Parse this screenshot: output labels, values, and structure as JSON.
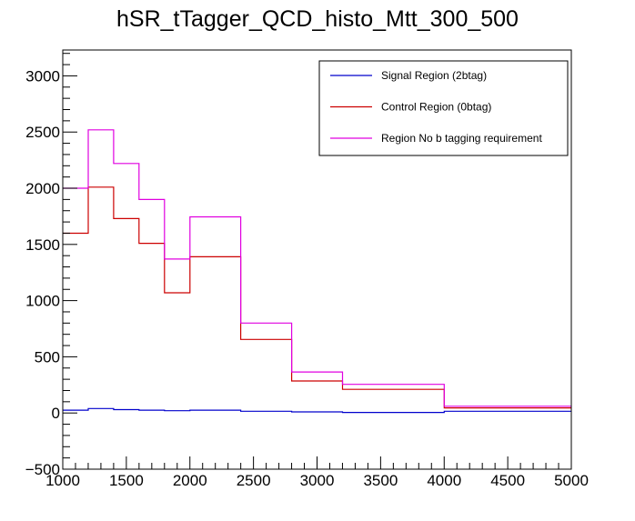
{
  "chart_data": {
    "type": "line",
    "title": "hSR_tTagger_QCD_histo_Mtt_300_500",
    "xlabel": "",
    "ylabel": "",
    "xlim": [
      1000,
      5000
    ],
    "ylim": [
      -500,
      3230
    ],
    "x_ticks": [
      1000,
      1500,
      2000,
      2500,
      3000,
      3500,
      4000,
      4500,
      5000
    ],
    "y_ticks": [
      -500,
      0,
      500,
      1000,
      1500,
      2000,
      2500,
      3000
    ],
    "x_tick_labels": [
      "1000",
      "1500",
      "2000",
      "2500",
      "3000",
      "3500",
      "4000",
      "4500",
      "5000"
    ],
    "y_tick_labels": [
      "−500",
      "0",
      "500",
      "1000",
      "1500",
      "2000",
      "2500",
      "3000"
    ],
    "legend_position": "top-right",
    "grid": false,
    "bin_edges": [
      1000,
      1200,
      1400,
      1600,
      1800,
      2000,
      2400,
      2800,
      3200,
      4000,
      5000
    ],
    "series": [
      {
        "name": "Signal Region (2btag)",
        "color": "#0000cc",
        "values": [
          25,
          40,
          30,
          25,
          20,
          25,
          15,
          10,
          5,
          15
        ]
      },
      {
        "name": "Control Region (0btag)",
        "color": "#cc0000",
        "values": [
          1600,
          2010,
          1730,
          1510,
          1070,
          1390,
          655,
          285,
          210,
          45
        ]
      },
      {
        "name": "Region No b tagging requirement",
        "color": "#e000e0",
        "values": [
          2000,
          2520,
          2220,
          1900,
          1370,
          1745,
          800,
          365,
          255,
          60
        ]
      }
    ]
  }
}
